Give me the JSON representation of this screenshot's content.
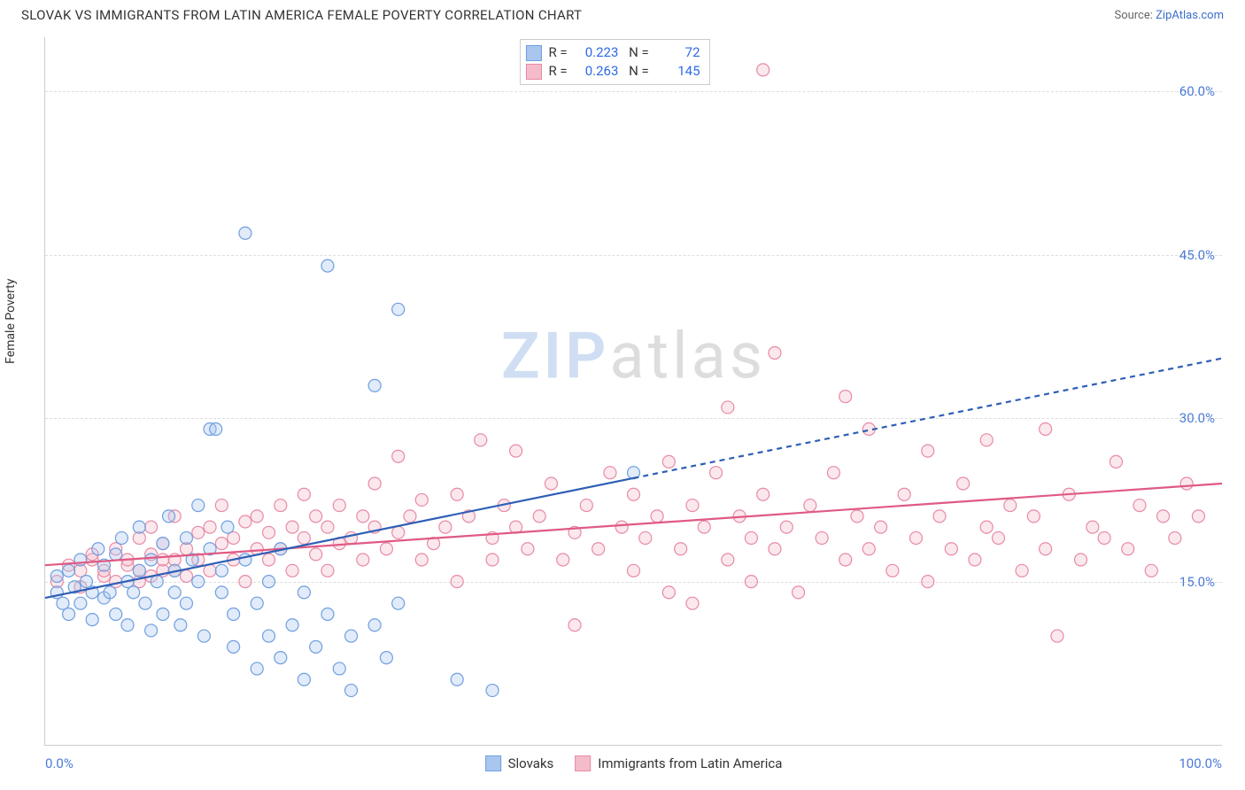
{
  "title": "SLOVAK VS IMMIGRANTS FROM LATIN AMERICA FEMALE POVERTY CORRELATION CHART",
  "source_prefix": "Source: ",
  "source_link": "ZipAtlas.com",
  "ylabel": "Female Poverty",
  "watermark_a": "ZIP",
  "watermark_b": "atlas",
  "chart": {
    "type": "scatter",
    "xlim": [
      0,
      100
    ],
    "ylim": [
      0,
      65
    ],
    "ytick_values": [
      15,
      30,
      45,
      60
    ],
    "ytick_labels": [
      "15.0%",
      "30.0%",
      "45.0%",
      "60.0%"
    ],
    "xtick_left": "0.0%",
    "xtick_right": "100.0%",
    "background_color": "#ffffff",
    "grid_color": "#dddddd",
    "axis_color": "#cccccc",
    "tick_color": "#4b7bd6",
    "colors": {
      "slovak_fill": "#a9c6ef",
      "slovak_stroke": "#6f9fe0",
      "slovak_line": "#2e5fb5",
      "latin_fill": "#f4bccb",
      "latin_stroke": "#e88aa5",
      "latin_line": "#e05a84"
    },
    "marker_radius": 7,
    "line_width": 2.2,
    "slovak_line_solid": {
      "x1": 0,
      "y1": 13.5,
      "x2": 50,
      "y2": 24.5
    },
    "slovak_line_dash": {
      "x1": 50,
      "y1": 24.5,
      "x2": 100,
      "y2": 35.5
    },
    "latin_line": {
      "x1": 0,
      "y1": 16.5,
      "x2": 100,
      "y2": 24.0
    }
  },
  "legend_top": {
    "r_label": "R =",
    "n_label": "N =",
    "rows": [
      {
        "swatch": "slovak",
        "r": "0.223",
        "n": "72"
      },
      {
        "swatch": "latin",
        "r": "0.263",
        "n": "145"
      }
    ]
  },
  "legend_bottom": [
    {
      "swatch": "slovak",
      "label": "Slovaks"
    },
    {
      "swatch": "latin",
      "label": "Immigrants from Latin America"
    }
  ],
  "points_slovak": [
    [
      1,
      14
    ],
    [
      1,
      15.5
    ],
    [
      1.5,
      13
    ],
    [
      2,
      16
    ],
    [
      2,
      12
    ],
    [
      2.5,
      14.5
    ],
    [
      3,
      17
    ],
    [
      3,
      13
    ],
    [
      3.5,
      15
    ],
    [
      4,
      14
    ],
    [
      4,
      11.5
    ],
    [
      4.5,
      18
    ],
    [
      5,
      16.5
    ],
    [
      5,
      13.5
    ],
    [
      5.5,
      14
    ],
    [
      6,
      17.5
    ],
    [
      6,
      12
    ],
    [
      6.5,
      19
    ],
    [
      7,
      15
    ],
    [
      7,
      11
    ],
    [
      7.5,
      14
    ],
    [
      8,
      16
    ],
    [
      8,
      20
    ],
    [
      8.5,
      13
    ],
    [
      9,
      17
    ],
    [
      9,
      10.5
    ],
    [
      9.5,
      15
    ],
    [
      10,
      18.5
    ],
    [
      10,
      12
    ],
    [
      10.5,
      21
    ],
    [
      11,
      14
    ],
    [
      11,
      16
    ],
    [
      11.5,
      11
    ],
    [
      12,
      19
    ],
    [
      12,
      13
    ],
    [
      12.5,
      17
    ],
    [
      13,
      15
    ],
    [
      13,
      22
    ],
    [
      13.5,
      10
    ],
    [
      14,
      29
    ],
    [
      14,
      18
    ],
    [
      14.5,
      29
    ],
    [
      15,
      14
    ],
    [
      15,
      16
    ],
    [
      15.5,
      20
    ],
    [
      16,
      12
    ],
    [
      16,
      9
    ],
    [
      17,
      47
    ],
    [
      17,
      17
    ],
    [
      18,
      13
    ],
    [
      18,
      7
    ],
    [
      19,
      15
    ],
    [
      19,
      10
    ],
    [
      20,
      8
    ],
    [
      20,
      18
    ],
    [
      21,
      11
    ],
    [
      22,
      14
    ],
    [
      22,
      6
    ],
    [
      23,
      9
    ],
    [
      24,
      44
    ],
    [
      24,
      12
    ],
    [
      25,
      7
    ],
    [
      26,
      10
    ],
    [
      26,
      5
    ],
    [
      28,
      33
    ],
    [
      28,
      11
    ],
    [
      29,
      8
    ],
    [
      30,
      40
    ],
    [
      30,
      13
    ],
    [
      35,
      6
    ],
    [
      38,
      5
    ],
    [
      50,
      25
    ]
  ],
  "points_latin": [
    [
      3,
      16
    ],
    [
      4,
      17
    ],
    [
      5,
      15.5
    ],
    [
      6,
      18
    ],
    [
      7,
      16.5
    ],
    [
      8,
      19
    ],
    [
      8,
      15
    ],
    [
      9,
      17.5
    ],
    [
      9,
      20
    ],
    [
      10,
      16
    ],
    [
      10,
      18.5
    ],
    [
      11,
      17
    ],
    [
      11,
      21
    ],
    [
      12,
      18
    ],
    [
      12,
      15.5
    ],
    [
      13,
      19.5
    ],
    [
      13,
      17
    ],
    [
      14,
      20
    ],
    [
      14,
      16
    ],
    [
      15,
      18.5
    ],
    [
      15,
      22
    ],
    [
      16,
      17
    ],
    [
      16,
      19
    ],
    [
      17,
      20.5
    ],
    [
      17,
      15
    ],
    [
      18,
      18
    ],
    [
      18,
      21
    ],
    [
      19,
      19.5
    ],
    [
      19,
      17
    ],
    [
      20,
      22
    ],
    [
      20,
      18
    ],
    [
      21,
      16
    ],
    [
      21,
      20
    ],
    [
      22,
      19
    ],
    [
      22,
      23
    ],
    [
      23,
      17.5
    ],
    [
      23,
      21
    ],
    [
      24,
      20
    ],
    [
      24,
      16
    ],
    [
      25,
      18.5
    ],
    [
      25,
      22
    ],
    [
      26,
      19
    ],
    [
      27,
      17
    ],
    [
      27,
      21
    ],
    [
      28,
      20
    ],
    [
      28,
      24
    ],
    [
      29,
      18
    ],
    [
      30,
      19.5
    ],
    [
      30,
      26.5
    ],
    [
      31,
      21
    ],
    [
      32,
      17
    ],
    [
      32,
      22.5
    ],
    [
      33,
      18.5
    ],
    [
      34,
      20
    ],
    [
      35,
      15
    ],
    [
      35,
      23
    ],
    [
      36,
      21
    ],
    [
      37,
      28
    ],
    [
      38,
      19
    ],
    [
      38,
      17
    ],
    [
      39,
      22
    ],
    [
      40,
      20
    ],
    [
      40,
      27
    ],
    [
      41,
      18
    ],
    [
      42,
      21
    ],
    [
      43,
      24
    ],
    [
      44,
      17
    ],
    [
      45,
      19.5
    ],
    [
      45,
      11
    ],
    [
      46,
      22
    ],
    [
      47,
      18
    ],
    [
      48,
      25
    ],
    [
      49,
      20
    ],
    [
      50,
      16
    ],
    [
      50,
      23
    ],
    [
      51,
      19
    ],
    [
      52,
      21
    ],
    [
      53,
      14
    ],
    [
      53,
      26
    ],
    [
      54,
      18
    ],
    [
      55,
      22
    ],
    [
      55,
      13
    ],
    [
      56,
      20
    ],
    [
      57,
      25
    ],
    [
      58,
      17
    ],
    [
      58,
      31
    ],
    [
      59,
      21
    ],
    [
      60,
      19
    ],
    [
      60,
      15
    ],
    [
      61,
      23
    ],
    [
      61,
      62
    ],
    [
      62,
      18
    ],
    [
      62,
      36
    ],
    [
      63,
      20
    ],
    [
      64,
      14
    ],
    [
      65,
      22
    ],
    [
      66,
      19
    ],
    [
      67,
      25
    ],
    [
      68,
      17
    ],
    [
      68,
      32
    ],
    [
      69,
      21
    ],
    [
      70,
      18
    ],
    [
      70,
      29
    ],
    [
      71,
      20
    ],
    [
      72,
      16
    ],
    [
      73,
      23
    ],
    [
      74,
      19
    ],
    [
      75,
      27
    ],
    [
      75,
      15
    ],
    [
      76,
      21
    ],
    [
      77,
      18
    ],
    [
      78,
      24
    ],
    [
      79,
      17
    ],
    [
      80,
      20
    ],
    [
      80,
      28
    ],
    [
      81,
      19
    ],
    [
      82,
      22
    ],
    [
      83,
      16
    ],
    [
      84,
      21
    ],
    [
      85,
      18
    ],
    [
      85,
      29
    ],
    [
      86,
      10
    ],
    [
      87,
      23
    ],
    [
      88,
      17
    ],
    [
      89,
      20
    ],
    [
      90,
      19
    ],
    [
      91,
      26
    ],
    [
      92,
      18
    ],
    [
      93,
      22
    ],
    [
      94,
      16
    ],
    [
      95,
      21
    ],
    [
      96,
      19
    ],
    [
      97,
      24
    ],
    [
      98,
      21
    ],
    [
      1,
      15
    ],
    [
      2,
      16.5
    ],
    [
      3,
      14.5
    ],
    [
      4,
      17.5
    ],
    [
      5,
      16
    ],
    [
      6,
      15
    ],
    [
      7,
      17
    ],
    [
      8,
      16
    ],
    [
      9,
      15.5
    ],
    [
      10,
      17
    ],
    [
      11,
      16
    ]
  ]
}
